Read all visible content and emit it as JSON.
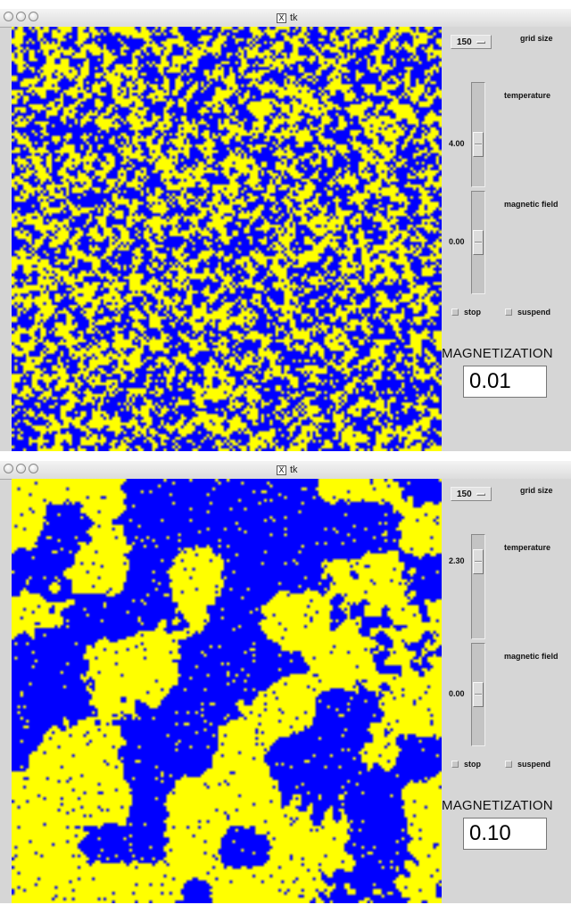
{
  "colors": {
    "spin_up": "#ffff00",
    "spin_down": "#0000ff",
    "panel": "#d6d6d6"
  },
  "windows": [
    {
      "title": "tk",
      "title_icon": "x11-icon",
      "grid_size": "150",
      "labels": {
        "grid_size": "grid size",
        "temperature": "temperature",
        "magnetic_field": "magnetic field",
        "stop": "stop",
        "suspend": "suspend",
        "magnetization": "MAGNETIZATION"
      },
      "temperature": {
        "value": "4.00",
        "fraction": 0.62
      },
      "magnetic_field": {
        "value": "0.00",
        "fraction": 0.5
      },
      "magnetization": "0.01",
      "lattice": {
        "state": "disordered",
        "up_fraction": 0.5,
        "seed": 11
      }
    },
    {
      "title": "tk",
      "title_icon": "x11-icon",
      "grid_size": "150",
      "labels": {
        "grid_size": "grid size",
        "temperature": "temperature",
        "magnetic_field": "magnetic field",
        "stop": "stop",
        "suspend": "suspend",
        "magnetization": "MAGNETIZATION"
      },
      "temperature": {
        "value": "2.30",
        "fraction": 0.18
      },
      "magnetic_field": {
        "value": "0.00",
        "fraction": 0.5
      },
      "magnetization": "0.10",
      "lattice": {
        "state": "critical",
        "up_fraction": 0.55,
        "seed": 29
      }
    }
  ]
}
